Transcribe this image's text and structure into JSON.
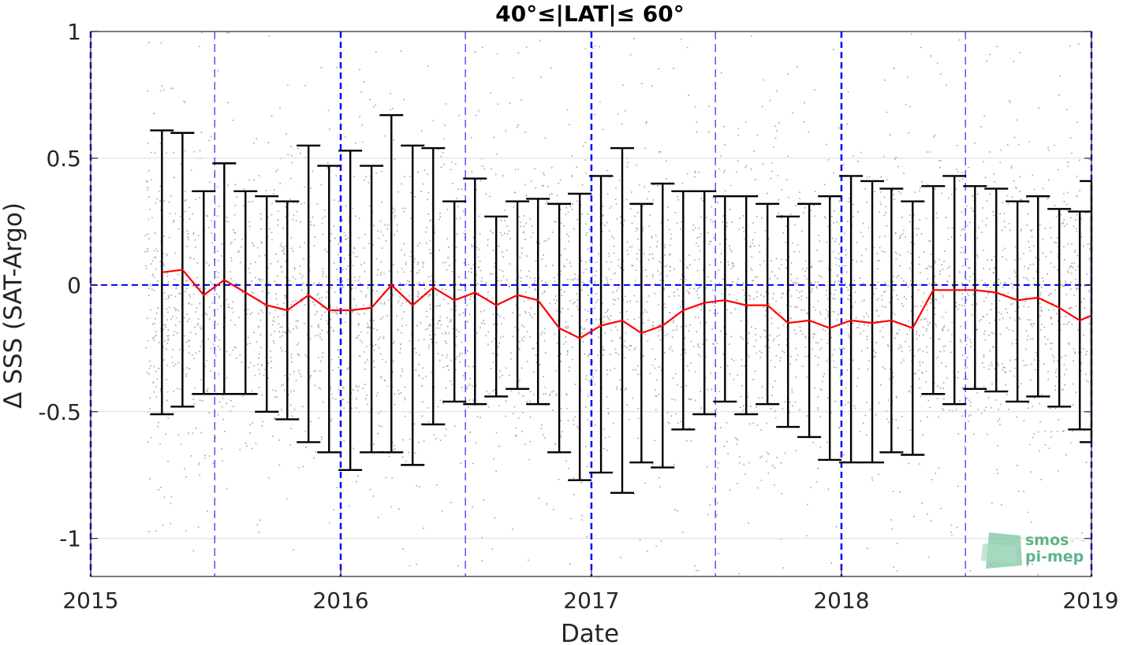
{
  "chart_data": {
    "type": "scatter",
    "title": "40°≤|LAT|≤ 60°",
    "xlabel": "Date",
    "ylabel": "Δ SSS (SAT-Argo)",
    "xlim": [
      "2015-01-01",
      "2019-01-01"
    ],
    "ylim": [
      -1.15,
      1.0
    ],
    "x_ticks": [
      "2015",
      "2016",
      "2017",
      "2018",
      "2019"
    ],
    "y_ticks": [
      "-1",
      "-0.5",
      "0",
      "0.5",
      "1"
    ],
    "grid": true,
    "scatter_color": "#8c8c8c",
    "mean_line_color": "#ff0000",
    "errorbar_color": "#000000",
    "reference_line_color": "#0000ff",
    "monthly_stats": [
      {
        "x": "2015-04-15",
        "mean": 0.05,
        "upper": 0.61,
        "lower": -0.51
      },
      {
        "x": "2015-05-15",
        "mean": 0.06,
        "upper": 0.6,
        "lower": -0.48
      },
      {
        "x": "2015-06-15",
        "mean": -0.04,
        "upper": 0.37,
        "lower": -0.43
      },
      {
        "x": "2015-07-15",
        "mean": 0.02,
        "upper": 0.48,
        "lower": -0.43
      },
      {
        "x": "2015-08-15",
        "mean": -0.03,
        "upper": 0.37,
        "lower": -0.43
      },
      {
        "x": "2015-09-15",
        "mean": -0.08,
        "upper": 0.35,
        "lower": -0.5
      },
      {
        "x": "2015-10-15",
        "mean": -0.1,
        "upper": 0.33,
        "lower": -0.53
      },
      {
        "x": "2015-11-15",
        "mean": -0.04,
        "upper": 0.55,
        "lower": -0.62
      },
      {
        "x": "2015-12-15",
        "mean": -0.1,
        "upper": 0.47,
        "lower": -0.66
      },
      {
        "x": "2016-01-15",
        "mean": -0.1,
        "upper": 0.53,
        "lower": -0.73
      },
      {
        "x": "2016-02-15",
        "mean": -0.09,
        "upper": 0.47,
        "lower": -0.66
      },
      {
        "x": "2016-03-15",
        "mean": 0.0,
        "upper": 0.67,
        "lower": -0.66
      },
      {
        "x": "2016-04-15",
        "mean": -0.08,
        "upper": 0.55,
        "lower": -0.71
      },
      {
        "x": "2016-05-15",
        "mean": -0.01,
        "upper": 0.54,
        "lower": -0.55
      },
      {
        "x": "2016-06-15",
        "mean": -0.06,
        "upper": 0.33,
        "lower": -0.46
      },
      {
        "x": "2016-07-15",
        "mean": -0.03,
        "upper": 0.42,
        "lower": -0.47
      },
      {
        "x": "2016-08-15",
        "mean": -0.08,
        "upper": 0.27,
        "lower": -0.44
      },
      {
        "x": "2016-09-15",
        "mean": -0.04,
        "upper": 0.33,
        "lower": -0.41
      },
      {
        "x": "2016-10-15",
        "mean": -0.06,
        "upper": 0.34,
        "lower": -0.47
      },
      {
        "x": "2016-11-15",
        "mean": -0.17,
        "upper": 0.32,
        "lower": -0.66
      },
      {
        "x": "2016-12-15",
        "mean": -0.21,
        "upper": 0.36,
        "lower": -0.77
      },
      {
        "x": "2017-01-15",
        "mean": -0.16,
        "upper": 0.43,
        "lower": -0.74
      },
      {
        "x": "2017-02-15",
        "mean": -0.14,
        "upper": 0.54,
        "lower": -0.82
      },
      {
        "x": "2017-03-15",
        "mean": -0.19,
        "upper": 0.32,
        "lower": -0.7
      },
      {
        "x": "2017-04-15",
        "mean": -0.16,
        "upper": 0.4,
        "lower": -0.72
      },
      {
        "x": "2017-05-15",
        "mean": -0.1,
        "upper": 0.37,
        "lower": -0.57
      },
      {
        "x": "2017-06-15",
        "mean": -0.07,
        "upper": 0.37,
        "lower": -0.51
      },
      {
        "x": "2017-07-15",
        "mean": -0.06,
        "upper": 0.35,
        "lower": -0.46
      },
      {
        "x": "2017-08-15",
        "mean": -0.08,
        "upper": 0.35,
        "lower": -0.51
      },
      {
        "x": "2017-09-15",
        "mean": -0.08,
        "upper": 0.32,
        "lower": -0.47
      },
      {
        "x": "2017-10-15",
        "mean": -0.15,
        "upper": 0.27,
        "lower": -0.56
      },
      {
        "x": "2017-11-15",
        "mean": -0.14,
        "upper": 0.32,
        "lower": -0.6
      },
      {
        "x": "2017-12-15",
        "mean": -0.17,
        "upper": 0.35,
        "lower": -0.69
      },
      {
        "x": "2018-01-15",
        "mean": -0.14,
        "upper": 0.43,
        "lower": -0.7
      },
      {
        "x": "2018-02-15",
        "mean": -0.15,
        "upper": 0.41,
        "lower": -0.7
      },
      {
        "x": "2018-03-15",
        "mean": -0.14,
        "upper": 0.38,
        "lower": -0.66
      },
      {
        "x": "2018-04-15",
        "mean": -0.17,
        "upper": 0.33,
        "lower": -0.67
      },
      {
        "x": "2018-05-15",
        "mean": -0.02,
        "upper": 0.39,
        "lower": -0.43
      },
      {
        "x": "2018-06-15",
        "mean": -0.02,
        "upper": 0.43,
        "lower": -0.47
      },
      {
        "x": "2018-07-15",
        "mean": -0.02,
        "upper": 0.39,
        "lower": -0.41
      },
      {
        "x": "2018-08-15",
        "mean": -0.03,
        "upper": 0.38,
        "lower": -0.42
      },
      {
        "x": "2018-09-15",
        "mean": -0.06,
        "upper": 0.33,
        "lower": -0.46
      },
      {
        "x": "2018-10-15",
        "mean": -0.05,
        "upper": 0.35,
        "lower": -0.44
      },
      {
        "x": "2018-11-15",
        "mean": -0.09,
        "upper": 0.3,
        "lower": -0.48
      },
      {
        "x": "2018-12-15",
        "mean": -0.14,
        "upper": 0.29,
        "lower": -0.57
      },
      {
        "x": "2019-01-01",
        "mean": -0.12,
        "upper": 0.41,
        "lower": -0.62
      }
    ]
  },
  "logo": {
    "line1": "smos",
    "line2": "pi-mep"
  }
}
